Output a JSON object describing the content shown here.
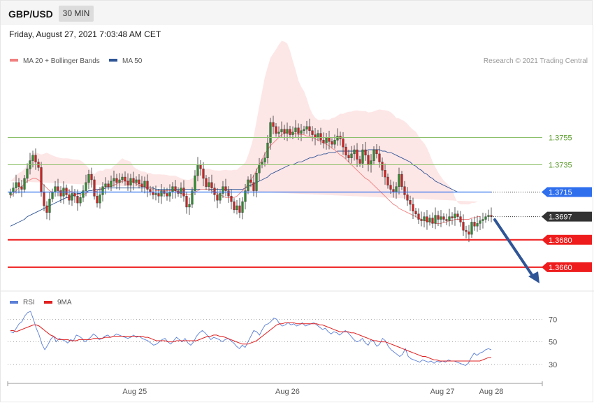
{
  "header": {
    "pair": "GBP/USD",
    "timeframe": "30 MIN",
    "datetime": "Friday, August 27, 2021 7:03:48 AM CET"
  },
  "legend": {
    "ma20": {
      "label": "MA 20 + Bollinger Bands",
      "color": "#f08080"
    },
    "ma50": {
      "label": "MA 50",
      "color": "#2f5597"
    },
    "credit": "Research © 2021 Trading Central"
  },
  "rsi_legend": {
    "rsi": {
      "label": "RSI",
      "color": "#5b7fd6"
    },
    "ma9": {
      "label": "9MA",
      "color": "#e02020"
    }
  },
  "chart_data": [
    {
      "type": "candlestick",
      "ylim": [
        1.3643,
        1.3807
      ],
      "x_ticks": [
        "Aug 25",
        "Aug 26",
        "Aug 27",
        "Aug 28"
      ],
      "levels": [
        {
          "price": 1.3755,
          "label": "1.3755",
          "style": "resistance-line",
          "color": "#8cc06a"
        },
        {
          "price": 1.3735,
          "label": "1.3735",
          "style": "resistance-line",
          "color": "#8cc06a"
        },
        {
          "price": 1.3715,
          "label": "1.3715",
          "style": "pivot",
          "color": "#2f6fee"
        },
        {
          "price": 1.3697,
          "label": "1.3697",
          "style": "current-price",
          "color": "#333333"
        },
        {
          "price": 1.368,
          "label": "1.3680",
          "style": "support",
          "color": "#ee1c1c"
        },
        {
          "price": 1.366,
          "label": "1.3660",
          "style": "support",
          "color": "#ee1c1c"
        }
      ],
      "closes": [
        1.3715,
        1.3718,
        1.3722,
        1.3719,
        1.3717,
        1.3725,
        1.3732,
        1.3738,
        1.3742,
        1.3737,
        1.3733,
        1.3715,
        1.3705,
        1.37,
        1.371,
        1.3715,
        1.3719,
        1.3716,
        1.3712,
        1.3718,
        1.3713,
        1.3709,
        1.3714,
        1.3712,
        1.3707,
        1.3711,
        1.3716,
        1.3722,
        1.3728,
        1.3724,
        1.3712,
        1.3707,
        1.3713,
        1.3719,
        1.3721,
        1.3719,
        1.3723,
        1.3725,
        1.3722,
        1.3724,
        1.3726,
        1.3723,
        1.372,
        1.3725,
        1.3722,
        1.3724,
        1.3721,
        1.3719,
        1.3723,
        1.3717,
        1.3715,
        1.3713,
        1.3714,
        1.3712,
        1.3716,
        1.3714,
        1.3712,
        1.3715,
        1.3719,
        1.3716,
        1.3714,
        1.3718,
        1.3712,
        1.3704,
        1.3706,
        1.3716,
        1.3727,
        1.3735,
        1.3732,
        1.3725,
        1.3719,
        1.3722,
        1.3718,
        1.3713,
        1.3709,
        1.3714,
        1.3719,
        1.3716,
        1.3712,
        1.3708,
        1.3702,
        1.3705,
        1.37,
        1.3708,
        1.3716,
        1.3724,
        1.3722,
        1.3716,
        1.3729,
        1.3735,
        1.3737,
        1.374,
        1.3751,
        1.3766,
        1.3763,
        1.3758,
        1.3759,
        1.3761,
        1.3758,
        1.3761,
        1.3757,
        1.3759,
        1.3762,
        1.3758,
        1.376,
        1.3761,
        1.3763,
        1.376,
        1.3757,
        1.3755,
        1.3758,
        1.3753,
        1.3751,
        1.3755,
        1.3752,
        1.375,
        1.3753,
        1.3756,
        1.3754,
        1.3748,
        1.3742,
        1.374,
        1.3743,
        1.3746,
        1.3739,
        1.3736,
        1.3746,
        1.3742,
        1.3735,
        1.3738,
        1.3746,
        1.3743,
        1.3737,
        1.3731,
        1.3726,
        1.372,
        1.3717,
        1.3715,
        1.3719,
        1.3728,
        1.3719,
        1.3713,
        1.3709,
        1.3706,
        1.3701,
        1.3699,
        1.3695,
        1.3694,
        1.3697,
        1.3693,
        1.3696,
        1.3692,
        1.3698,
        1.3695,
        1.3697,
        1.3695,
        1.3694,
        1.3697,
        1.3696,
        1.3699,
        1.3697,
        1.3693,
        1.3687,
        1.3686,
        1.3684,
        1.3693,
        1.369,
        1.3692,
        1.3694,
        1.3695,
        1.3697,
        1.3698,
        1.3697
      ],
      "ma20": [
        1.3712,
        1.3714,
        1.3716,
        1.3718,
        1.3719,
        1.3721,
        1.3723,
        1.3724,
        1.3725,
        1.3725,
        1.3724,
        1.3722,
        1.372,
        1.3718,
        1.3716,
        1.3715,
        1.3715,
        1.3715,
        1.3716,
        1.3717,
        1.3717,
        1.3716,
        1.3715,
        1.3714,
        1.3713,
        1.3713,
        1.3713,
        1.3714,
        1.3715,
        1.3715,
        1.3715,
        1.3716,
        1.3717,
        1.3718,
        1.3719,
        1.3719,
        1.3719,
        1.372,
        1.3721,
        1.3722,
        1.3723,
        1.3723,
        1.3723,
        1.3723,
        1.3722,
        1.3721,
        1.372,
        1.3719,
        1.3719,
        1.3718,
        1.3718,
        1.3717,
        1.3716,
        1.3716,
        1.3716,
        1.3716,
        1.3716,
        1.3716,
        1.3716,
        1.3716,
        1.3715,
        1.3714,
        1.3713,
        1.3713,
        1.3713,
        1.3714,
        1.3715,
        1.3716,
        1.3717,
        1.3717,
        1.3717,
        1.3717,
        1.3716,
        1.3715,
        1.3714,
        1.3713,
        1.3712,
        1.3711,
        1.3711,
        1.3711,
        1.3711,
        1.3712,
        1.3714,
        1.3716,
        1.3718,
        1.3721,
        1.3724,
        1.3727,
        1.3731,
        1.3735,
        1.3739,
        1.3743,
        1.3746,
        1.3749,
        1.3751,
        1.3753,
        1.3755,
        1.3757,
        1.3758,
        1.3759,
        1.3759,
        1.3758,
        1.3758,
        1.3757,
        1.3757,
        1.3757,
        1.3756,
        1.3756,
        1.3755,
        1.3754,
        1.3753,
        1.3752,
        1.3751,
        1.375,
        1.3749,
        1.3747,
        1.3746,
        1.3744,
        1.3742,
        1.3741,
        1.3739,
        1.3737,
        1.3735,
        1.3733,
        1.3731,
        1.3729,
        1.3727,
        1.3725,
        1.3724,
        1.3722,
        1.372,
        1.3718,
        1.3716,
        1.3714,
        1.3712,
        1.371,
        1.3708,
        1.3706,
        1.3705,
        1.3703,
        1.3702,
        1.3701,
        1.37,
        1.3699,
        1.3698,
        1.3697,
        1.3696,
        1.3695,
        1.3694,
        1.3694,
        1.3693,
        1.3693,
        1.3692,
        1.3692,
        1.3692,
        1.3693,
        1.3693,
        1.3694,
        1.3694,
        1.3695,
        1.3695,
        1.3695,
        1.3695,
        1.3695,
        1.3695,
        1.3696,
        1.3696,
        1.3697,
        1.3697
      ],
      "ma50": [
        1.369,
        1.3691,
        1.3692,
        1.3693,
        1.3694,
        1.3695,
        1.3697,
        1.3698,
        1.3699,
        1.37,
        1.3701,
        1.3702,
        1.3703,
        1.3704,
        1.3705,
        1.3706,
        1.3707,
        1.3708,
        1.3709,
        1.371,
        1.3711,
        1.3711,
        1.3712,
        1.3713,
        1.3714,
        1.3714,
        1.3715,
        1.3715,
        1.3716,
        1.3716,
        1.3717,
        1.3717,
        1.3717,
        1.3717,
        1.3718,
        1.3718,
        1.3718,
        1.3718,
        1.3718,
        1.3718,
        1.3718,
        1.3718,
        1.3718,
        1.3718,
        1.3718,
        1.3718,
        1.3718,
        1.3718,
        1.3718,
        1.3718,
        1.3718,
        1.3718,
        1.3717,
        1.3717,
        1.3717,
        1.3717,
        1.3717,
        1.3717,
        1.3717,
        1.3717,
        1.3717,
        1.3717,
        1.3717,
        1.3717,
        1.3717,
        1.3717,
        1.3717,
        1.3717,
        1.3717,
        1.3717,
        1.3717,
        1.3717,
        1.3717,
        1.3717,
        1.3717,
        1.3717,
        1.3717,
        1.3717,
        1.3717,
        1.3717,
        1.3717,
        1.3717,
        1.3717,
        1.3717,
        1.3718,
        1.3719,
        1.372,
        1.3721,
        1.3722,
        1.3723,
        1.3724,
        1.3725,
        1.3726,
        1.3728,
        1.3729,
        1.373,
        1.3731,
        1.3732,
        1.3733,
        1.3734,
        1.3735,
        1.3735,
        1.3736,
        1.3737,
        1.3737,
        1.3738,
        1.3739,
        1.374,
        1.374,
        1.3741,
        1.3742,
        1.3742,
        1.3743,
        1.3743,
        1.3744,
        1.3744,
        1.3744,
        1.3745,
        1.3745,
        1.3745,
        1.3745,
        1.3745,
        1.3745,
        1.3745,
        1.3745,
        1.3745,
        1.3745,
        1.3745,
        1.3746,
        1.3746,
        1.3746,
        1.3746,
        1.3746,
        1.3745,
        1.3745,
        1.3744,
        1.3744,
        1.3743,
        1.3742,
        1.3741,
        1.374,
        1.3739,
        1.3738,
        1.3737,
        1.3735,
        1.3734,
        1.3732,
        1.3731,
        1.3729,
        1.3728,
        1.3726,
        1.3725,
        1.3723,
        1.3722,
        1.3721,
        1.372,
        1.3719,
        1.3718,
        1.3717,
        1.3716,
        1.3715,
        1.3715,
        1.3715,
        1.3715,
        1.3715,
        1.3715,
        1.3715,
        1.3715,
        1.3715,
        1.3715,
        1.3715,
        1.3715
      ]
    },
    {
      "type": "line",
      "x_ticks": [
        "Aug 25",
        "Aug 26",
        "Aug 27",
        "Aug 28"
      ],
      "y_ticks": [
        70,
        50,
        30
      ],
      "ylim": [
        15,
        82
      ],
      "series": [
        {
          "name": "RSI",
          "color": "#5b7fd6",
          "values": [
            59,
            58,
            62,
            66,
            68,
            73,
            76,
            77,
            70,
            62,
            56,
            48,
            43,
            47,
            52,
            55,
            50,
            53,
            52,
            51,
            49,
            52,
            51,
            56,
            55,
            53,
            50,
            52,
            54,
            57,
            55,
            52,
            53,
            55,
            56,
            54,
            55,
            57,
            56,
            55,
            54,
            53,
            54,
            56,
            54,
            55,
            53,
            52,
            51,
            49,
            47,
            48,
            50,
            52,
            53,
            50,
            48,
            51,
            54,
            52,
            50,
            53,
            49,
            47,
            50,
            55,
            58,
            60,
            58,
            55,
            52,
            54,
            53,
            52,
            50,
            52,
            53,
            51,
            49,
            46,
            44,
            47,
            45,
            50,
            55,
            60,
            59,
            56,
            61,
            65,
            66,
            68,
            71,
            70,
            66,
            64,
            65,
            67,
            65,
            66,
            64,
            65,
            67,
            64,
            65,
            66,
            67,
            65,
            63,
            61,
            62,
            59,
            57,
            59,
            58,
            56,
            58,
            60,
            58,
            55,
            52,
            50,
            51,
            53,
            49,
            47,
            52,
            50,
            46,
            48,
            53,
            51,
            46,
            43,
            41,
            39,
            37,
            39,
            44,
            37,
            35,
            34,
            33,
            32,
            34,
            33,
            32,
            33,
            31,
            33,
            32,
            33,
            32,
            34,
            33,
            33,
            32,
            31,
            30,
            29,
            31,
            36,
            40,
            38,
            40,
            41,
            43,
            44,
            43
          ]
        },
        {
          "name": "9MA",
          "color": "#e02020",
          "values": [
            60,
            60,
            59,
            60,
            61,
            62,
            63,
            64,
            65,
            65,
            64,
            62,
            60,
            58,
            56,
            55,
            53,
            52,
            52,
            52,
            52,
            51,
            51,
            51,
            52,
            52,
            52,
            52,
            52,
            53,
            53,
            53,
            53,
            54,
            54,
            54,
            55,
            55,
            55,
            55,
            55,
            55,
            55,
            55,
            55,
            55,
            55,
            54,
            54,
            53,
            52,
            51,
            51,
            51,
            51,
            50,
            50,
            50,
            51,
            51,
            51,
            51,
            51,
            51,
            51,
            51,
            52,
            53,
            54,
            55,
            55,
            56,
            56,
            55,
            55,
            54,
            53,
            52,
            51,
            50,
            49,
            48,
            48,
            48,
            49,
            50,
            51,
            53,
            55,
            57,
            59,
            61,
            63,
            65,
            66,
            66,
            67,
            67,
            67,
            67,
            66,
            66,
            66,
            66,
            66,
            66,
            66,
            66,
            65,
            65,
            64,
            63,
            62,
            61,
            60,
            59,
            59,
            59,
            59,
            58,
            58,
            57,
            56,
            55,
            54,
            53,
            52,
            51,
            51,
            50,
            50,
            50,
            49,
            48,
            47,
            46,
            45,
            44,
            43,
            42,
            41,
            40,
            39,
            38,
            37,
            37,
            36,
            35,
            34,
            34,
            33,
            33,
            33,
            33,
            33,
            33,
            33,
            33,
            33,
            33,
            33,
            33,
            33,
            33,
            33,
            34,
            35,
            36,
            36
          ]
        }
      ]
    }
  ]
}
